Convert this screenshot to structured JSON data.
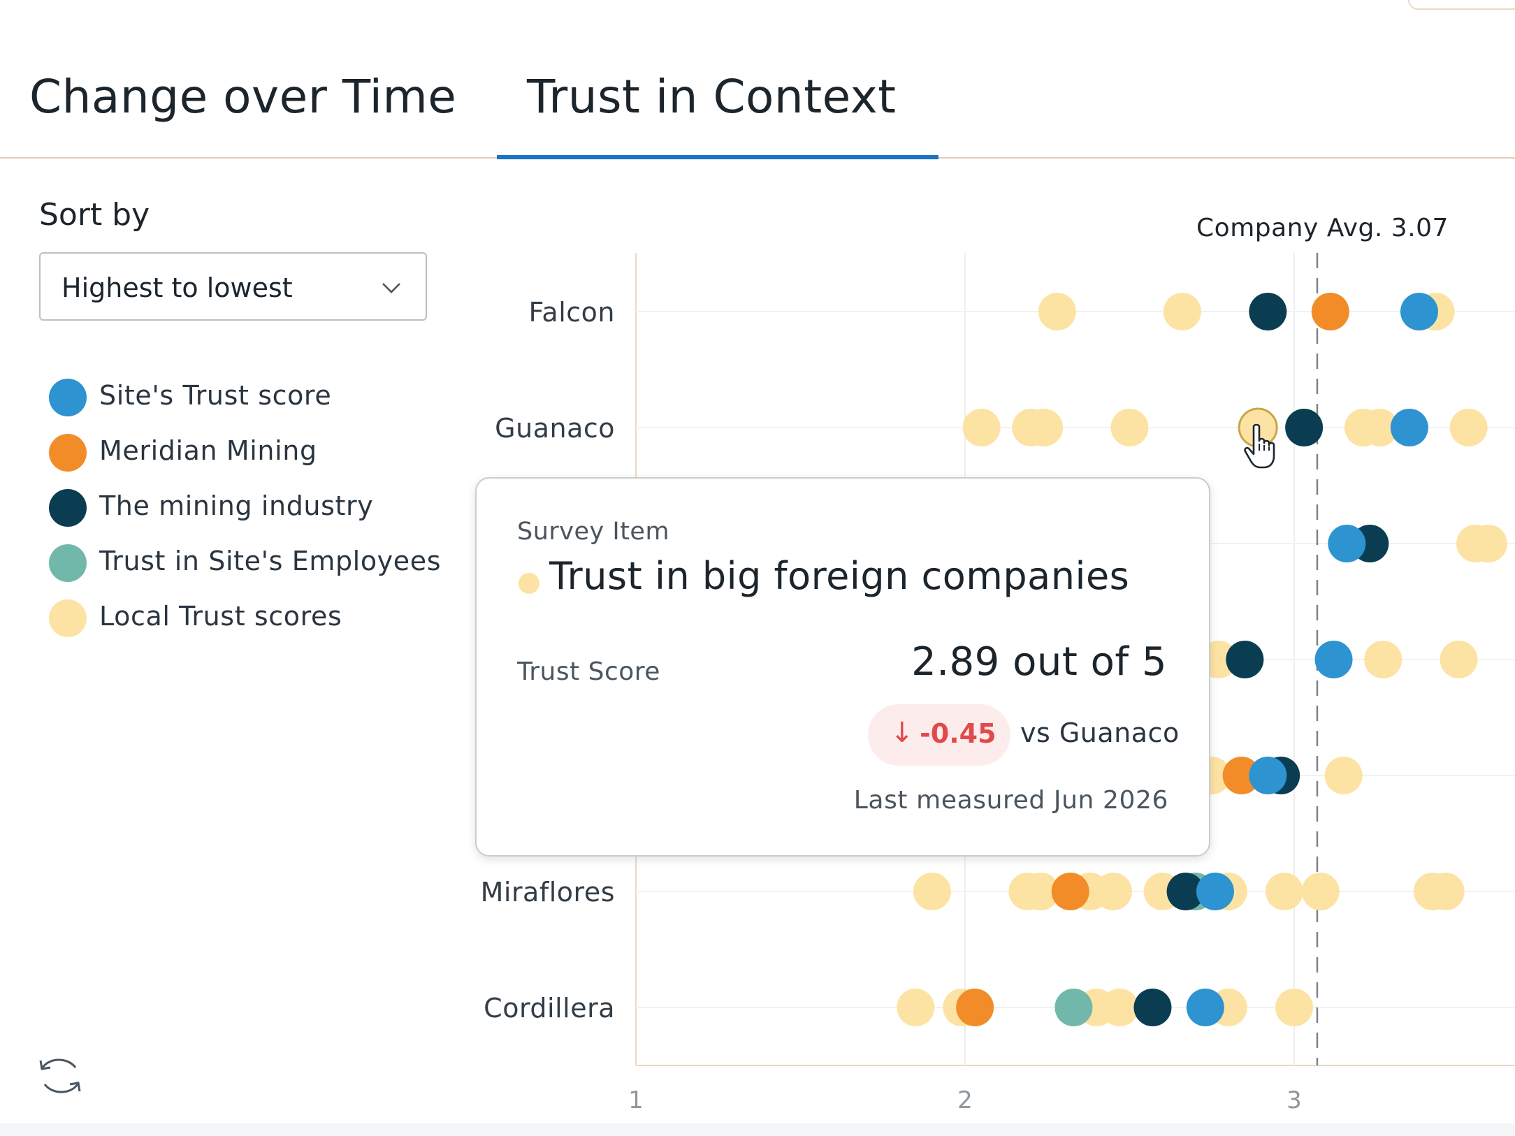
{
  "tabs": [
    {
      "label": "Change over Time",
      "active": false
    },
    {
      "label": "Trust in Context",
      "active": true
    }
  ],
  "sort": {
    "label": "Sort by",
    "selected": "Highest to lowest"
  },
  "legend": [
    {
      "label": "Site's Trust score",
      "color": "#2d93d1"
    },
    {
      "label": "Meridian Mining",
      "color": "#f28c28"
    },
    {
      "label": "The mining industry",
      "color": "#0b3d52"
    },
    {
      "label": "Trust in Site's Employees",
      "color": "#72b8aa"
    },
    {
      "label": "Local Trust scores",
      "color": "#fde3a3"
    }
  ],
  "icons": {
    "refresh": "refresh-icon",
    "chevron": "chevron-down-icon",
    "cursor": "hand-cursor-icon",
    "arrow_down": "arrow-down-icon"
  },
  "chart_data": {
    "type": "scatter",
    "title": "",
    "reference_line": {
      "label": "Company Avg. 3.07",
      "value": 3.07
    },
    "x_ticks": [
      "1",
      "2",
      "3"
    ],
    "xlim": [
      1,
      3.67
    ],
    "rows": [
      {
        "label": "Falcon",
        "points": [
          {
            "x": 2.28,
            "series": "local"
          },
          {
            "x": 2.66,
            "series": "local"
          },
          {
            "x": 2.92,
            "series": "industry"
          },
          {
            "x": 3.11,
            "series": "meridian"
          },
          {
            "x": 3.43,
            "series": "local"
          },
          {
            "x": 3.38,
            "series": "site"
          }
        ]
      },
      {
        "label": "Guanaco",
        "points": [
          {
            "x": 2.05,
            "series": "local"
          },
          {
            "x": 2.2,
            "series": "local"
          },
          {
            "x": 2.24,
            "series": "local"
          },
          {
            "x": 2.5,
            "series": "local"
          },
          {
            "x": 2.89,
            "series": "local",
            "highlighted": true
          },
          {
            "x": 3.03,
            "series": "industry"
          },
          {
            "x": 3.21,
            "series": "local"
          },
          {
            "x": 3.26,
            "series": "local"
          },
          {
            "x": 3.35,
            "series": "site"
          },
          {
            "x": 3.53,
            "series": "local"
          }
        ]
      },
      {
        "label": "",
        "points": [
          {
            "x": 2.68,
            "series": "local"
          },
          {
            "x": 3.23,
            "series": "industry"
          },
          {
            "x": 3.16,
            "series": "site"
          },
          {
            "x": 3.55,
            "series": "local"
          },
          {
            "x": 3.59,
            "series": "local"
          }
        ]
      },
      {
        "label": "",
        "points": [
          {
            "x": 2.77,
            "series": "local"
          },
          {
            "x": 2.85,
            "series": "industry"
          },
          {
            "x": 3.12,
            "series": "site"
          },
          {
            "x": 3.27,
            "series": "local"
          },
          {
            "x": 3.5,
            "series": "local"
          }
        ]
      },
      {
        "label": "",
        "points": [
          {
            "x": 2.75,
            "series": "local"
          },
          {
            "x": 2.84,
            "series": "meridian"
          },
          {
            "x": 2.96,
            "series": "industry"
          },
          {
            "x": 2.92,
            "series": "site"
          },
          {
            "x": 3.15,
            "series": "local"
          }
        ]
      },
      {
        "label": "Miraflores",
        "points": [
          {
            "x": 1.9,
            "series": "local"
          },
          {
            "x": 2.19,
            "series": "local"
          },
          {
            "x": 2.23,
            "series": "local"
          },
          {
            "x": 2.38,
            "series": "local"
          },
          {
            "x": 2.45,
            "series": "local"
          },
          {
            "x": 2.6,
            "series": "local"
          },
          {
            "x": 2.8,
            "series": "local"
          },
          {
            "x": 2.97,
            "series": "local"
          },
          {
            "x": 3.08,
            "series": "local"
          },
          {
            "x": 3.42,
            "series": "local"
          },
          {
            "x": 3.46,
            "series": "local"
          },
          {
            "x": 2.32,
            "series": "meridian"
          },
          {
            "x": 2.67,
            "series": "industry"
          },
          {
            "x": 2.7,
            "series": "employees"
          },
          {
            "x": 2.76,
            "series": "site"
          }
        ]
      },
      {
        "label": "Cordillera",
        "points": [
          {
            "x": 1.85,
            "series": "local"
          },
          {
            "x": 1.99,
            "series": "local"
          },
          {
            "x": 2.4,
            "series": "local"
          },
          {
            "x": 2.47,
            "series": "local"
          },
          {
            "x": 2.8,
            "series": "local"
          },
          {
            "x": 3.0,
            "series": "local"
          },
          {
            "x": 2.03,
            "series": "meridian"
          },
          {
            "x": 2.33,
            "series": "employees"
          },
          {
            "x": 2.57,
            "series": "industry"
          },
          {
            "x": 2.73,
            "series": "site"
          }
        ]
      }
    ],
    "grid": true
  },
  "tooltip": {
    "kicker": "Survey Item",
    "title": "Trust in big foreign companies",
    "score_label": "Trust Score",
    "score": "2.89 out of 5",
    "delta": "-0.45",
    "delta_arrow": "↓",
    "vs": "vs Guanaco",
    "measured": "Last measured Jun 2026"
  }
}
